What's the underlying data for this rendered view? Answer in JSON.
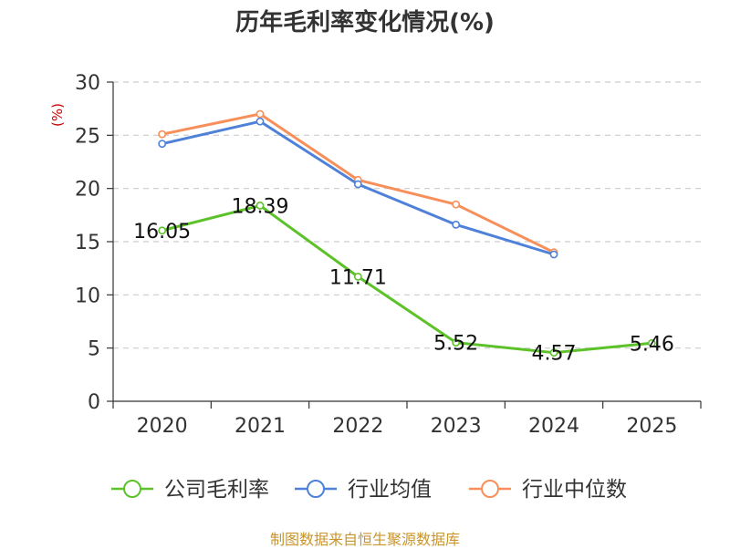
{
  "chart_data": {
    "type": "line",
    "title": "历年毛利率变化情况(%)",
    "ylabel": "(%)",
    "xlabel": "",
    "ylim": [
      0,
      30
    ],
    "yticks": [
      0,
      5,
      10,
      15,
      20,
      25,
      30
    ],
    "categories": [
      "2020",
      "2021",
      "2022",
      "2023",
      "2024",
      "2025"
    ],
    "grid": true,
    "legend_position": "bottom",
    "series": [
      {
        "name": "公司毛利率",
        "color": "#5dc22a",
        "values": [
          16.05,
          18.39,
          11.71,
          5.52,
          4.57,
          5.46
        ],
        "labels": [
          "16.05",
          "18.39",
          "11.71",
          "5.52",
          "4.57",
          "5.46"
        ]
      },
      {
        "name": "行业均值",
        "color": "#4f81d9",
        "values": [
          24.2,
          26.3,
          20.4,
          16.6,
          13.8,
          null
        ]
      },
      {
        "name": "行业中位数",
        "color": "#f78f5a",
        "values": [
          25.1,
          27.0,
          20.8,
          18.5,
          14.0,
          null
        ]
      }
    ],
    "source": "制图数据来自恒生聚源数据库",
    "ylabel_color": "#cc0000"
  }
}
